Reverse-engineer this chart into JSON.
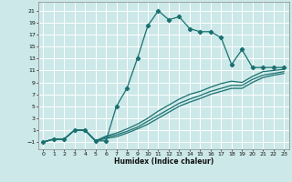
{
  "xlabel": "Humidex (Indice chaleur)",
  "bg_color": "#cce8e8",
  "grid_color": "#ffffff",
  "line_color": "#1a7070",
  "xlim": [
    -0.5,
    23.5
  ],
  "ylim": [
    -2.2,
    22.5
  ],
  "xticks": [
    0,
    1,
    2,
    3,
    4,
    5,
    6,
    7,
    8,
    9,
    10,
    11,
    12,
    13,
    14,
    15,
    16,
    17,
    18,
    19,
    20,
    21,
    22,
    23
  ],
  "yticks": [
    -1,
    1,
    3,
    5,
    7,
    9,
    11,
    13,
    15,
    17,
    19,
    21
  ],
  "curve1_x": [
    0,
    1,
    2,
    3,
    4,
    5,
    6,
    7,
    8,
    9,
    10,
    11,
    12,
    13,
    14,
    15,
    16,
    17,
    18,
    19,
    20,
    21,
    22,
    23
  ],
  "curve1_y": [
    -1,
    -0.5,
    -0.5,
    1.0,
    1.0,
    -0.8,
    -0.8,
    5.0,
    8.0,
    13.0,
    18.5,
    21.0,
    19.5,
    20.0,
    18.0,
    17.5,
    17.5,
    16.5,
    12.0,
    14.5,
    11.5,
    11.5,
    11.5,
    11.5
  ],
  "curve2_x": [
    0,
    1,
    2,
    3,
    4,
    5,
    6,
    7,
    8,
    9,
    10,
    11,
    12,
    13,
    14,
    15,
    16,
    17,
    18,
    19,
    20,
    21,
    22,
    23
  ],
  "curve2_y": [
    -1,
    -0.5,
    -0.5,
    1.0,
    1.0,
    -0.8,
    0.0,
    0.5,
    1.2,
    2.0,
    3.0,
    4.2,
    5.2,
    6.2,
    7.0,
    7.5,
    8.2,
    8.8,
    9.2,
    9.0,
    10.0,
    10.8,
    11.0,
    11.2
  ],
  "curve3_x": [
    0,
    1,
    2,
    3,
    4,
    5,
    6,
    7,
    8,
    9,
    10,
    11,
    12,
    13,
    14,
    15,
    16,
    17,
    18,
    19,
    20,
    21,
    22,
    23
  ],
  "curve3_y": [
    -1,
    -0.5,
    -0.5,
    1.0,
    1.0,
    -0.8,
    -0.2,
    0.2,
    0.8,
    1.5,
    2.5,
    3.5,
    4.5,
    5.5,
    6.2,
    6.8,
    7.5,
    8.0,
    8.5,
    8.5,
    9.5,
    10.2,
    10.5,
    10.8
  ],
  "curve4_x": [
    0,
    1,
    2,
    3,
    4,
    5,
    6,
    7,
    8,
    9,
    10,
    11,
    12,
    13,
    14,
    15,
    16,
    17,
    18,
    19,
    20,
    21,
    22,
    23
  ],
  "curve4_y": [
    -1,
    -0.5,
    -0.5,
    1.0,
    1.0,
    -0.8,
    -0.4,
    -0.1,
    0.5,
    1.2,
    2.0,
    3.0,
    4.0,
    5.0,
    5.7,
    6.3,
    7.0,
    7.5,
    8.0,
    8.0,
    9.0,
    9.8,
    10.2,
    10.5
  ]
}
